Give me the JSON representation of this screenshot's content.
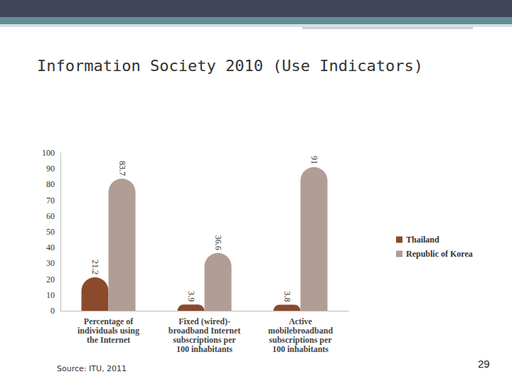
{
  "chart_data": {
    "type": "bar",
    "title": "Information Society 2010 (Use Indicators)",
    "categories": [
      "Percentage of\nindividuals using\nthe Internet",
      "Fixed (wired)-\nbroadband Internet\nsubscriptions per\n100 inhabitants",
      "Active\nmobilebroadband\nsubscriptions per\n100 inhabitants"
    ],
    "series": [
      {
        "name": "Thailand",
        "color": "#8b4a2b",
        "values": [
          21.2,
          3.9,
          3.8
        ]
      },
      {
        "name": "Republic of Korea",
        "color": "#b29c96",
        "values": [
          83.7,
          36.6,
          91
        ]
      }
    ],
    "ylim": [
      0,
      100
    ],
    "yticks": [
      0,
      10,
      20,
      30,
      40,
      50,
      60,
      70,
      80,
      90,
      100
    ],
    "grid": false,
    "legend": "right",
    "data_labels": true,
    "annotations": [
      "Source: ITU, 2011",
      "29"
    ]
  }
}
